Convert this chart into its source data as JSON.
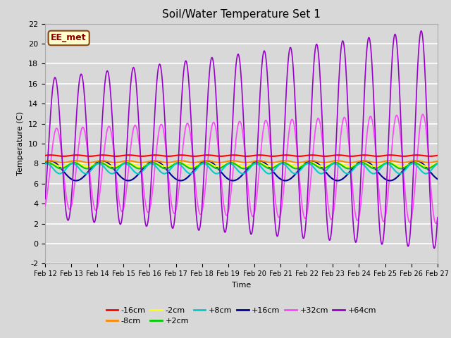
{
  "title": "Soil/Water Temperature Set 1",
  "xlabel": "Time",
  "ylabel": "Temperature (C)",
  "ylim": [
    -2,
    22
  ],
  "yticks": [
    -2,
    0,
    2,
    4,
    6,
    8,
    10,
    12,
    14,
    16,
    18,
    20,
    22
  ],
  "background_color": "#d8d8d8",
  "plot_bg_color": "#d8d8d8",
  "annotation_text": "EE_met",
  "annotation_bg": "#ffffcc",
  "annotation_border": "#8b4513",
  "series": [
    {
      "label": "-16cm",
      "color": "#ff0000"
    },
    {
      "label": "-8cm",
      "color": "#ff8800"
    },
    {
      "label": "-2cm",
      "color": "#ffff00"
    },
    {
      "label": "+2cm",
      "color": "#00cc00"
    },
    {
      "label": "+8cm",
      "color": "#00cccc"
    },
    {
      "label": "+16cm",
      "color": "#000099"
    },
    {
      "label": "+32cm",
      "color": "#ff44ff"
    },
    {
      "label": "+64cm",
      "color": "#9900cc"
    }
  ],
  "date_start": 12,
  "date_end": 27,
  "n_points": 720
}
